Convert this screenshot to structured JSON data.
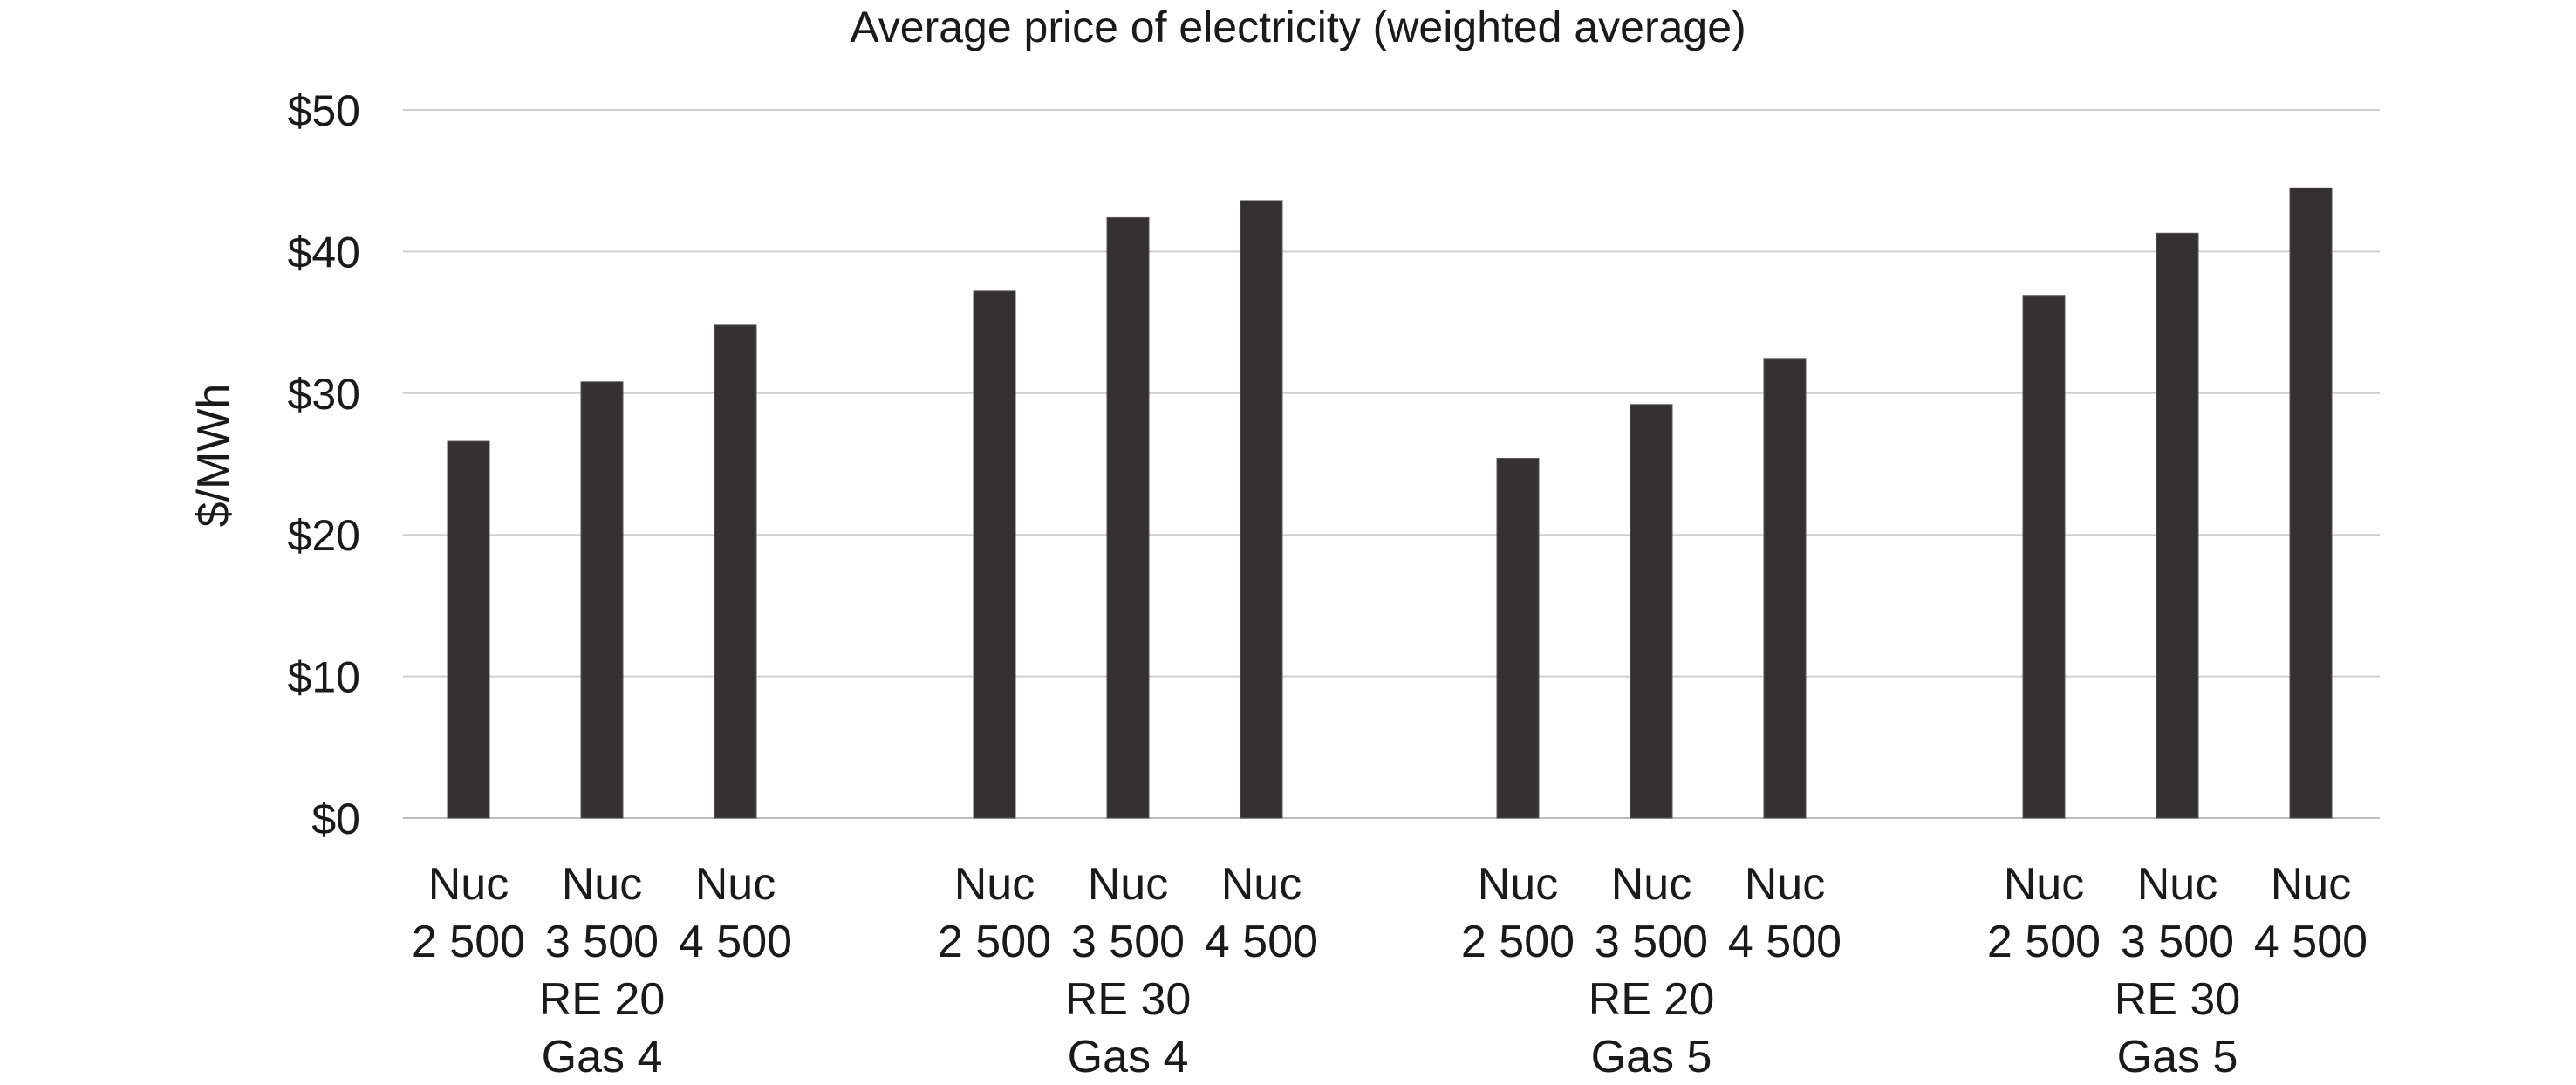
{
  "chart_data": {
    "type": "bar",
    "title": "Average price of electricity (weighted average)",
    "ylabel": "$/MWh",
    "xlabel": "",
    "ylim": [
      0,
      50
    ],
    "yticks": [
      0,
      10,
      20,
      30,
      40,
      50
    ],
    "ytick_labels": [
      "$0",
      "$10",
      "$20",
      "$30",
      "$40",
      "$50"
    ],
    "grid": true,
    "legend": "none",
    "bar_color": "#333132",
    "groups": [
      {
        "label_line1": "RE 20",
        "label_line2": "Gas 4",
        "bars": [
          {
            "label_line1": "Nuc",
            "label_line2": "2 500",
            "value": 26.6
          },
          {
            "label_line1": "Nuc",
            "label_line2": "3 500",
            "value": 30.8
          },
          {
            "label_line1": "Nuc",
            "label_line2": "4 500",
            "value": 34.8
          }
        ]
      },
      {
        "label_line1": "RE 30",
        "label_line2": "Gas 4",
        "bars": [
          {
            "label_line1": "Nuc",
            "label_line2": "2 500",
            "value": 37.2
          },
          {
            "label_line1": "Nuc",
            "label_line2": "3 500",
            "value": 42.4
          },
          {
            "label_line1": "Nuc",
            "label_line2": "4 500",
            "value": 43.6
          }
        ]
      },
      {
        "label_line1": "RE 20",
        "label_line2": "Gas 5",
        "bars": [
          {
            "label_line1": "Nuc",
            "label_line2": "2 500",
            "value": 25.4
          },
          {
            "label_line1": "Nuc",
            "label_line2": "3 500",
            "value": 29.2
          },
          {
            "label_line1": "Nuc",
            "label_line2": "4 500",
            "value": 32.4
          }
        ]
      },
      {
        "label_line1": "RE 30",
        "label_line2": "Gas 5",
        "bars": [
          {
            "label_line1": "Nuc",
            "label_line2": "2 500",
            "value": 36.9
          },
          {
            "label_line1": "Nuc",
            "label_line2": "3 500",
            "value": 41.3
          },
          {
            "label_line1": "Nuc",
            "label_line2": "4 500",
            "value": 44.5
          }
        ]
      }
    ]
  }
}
